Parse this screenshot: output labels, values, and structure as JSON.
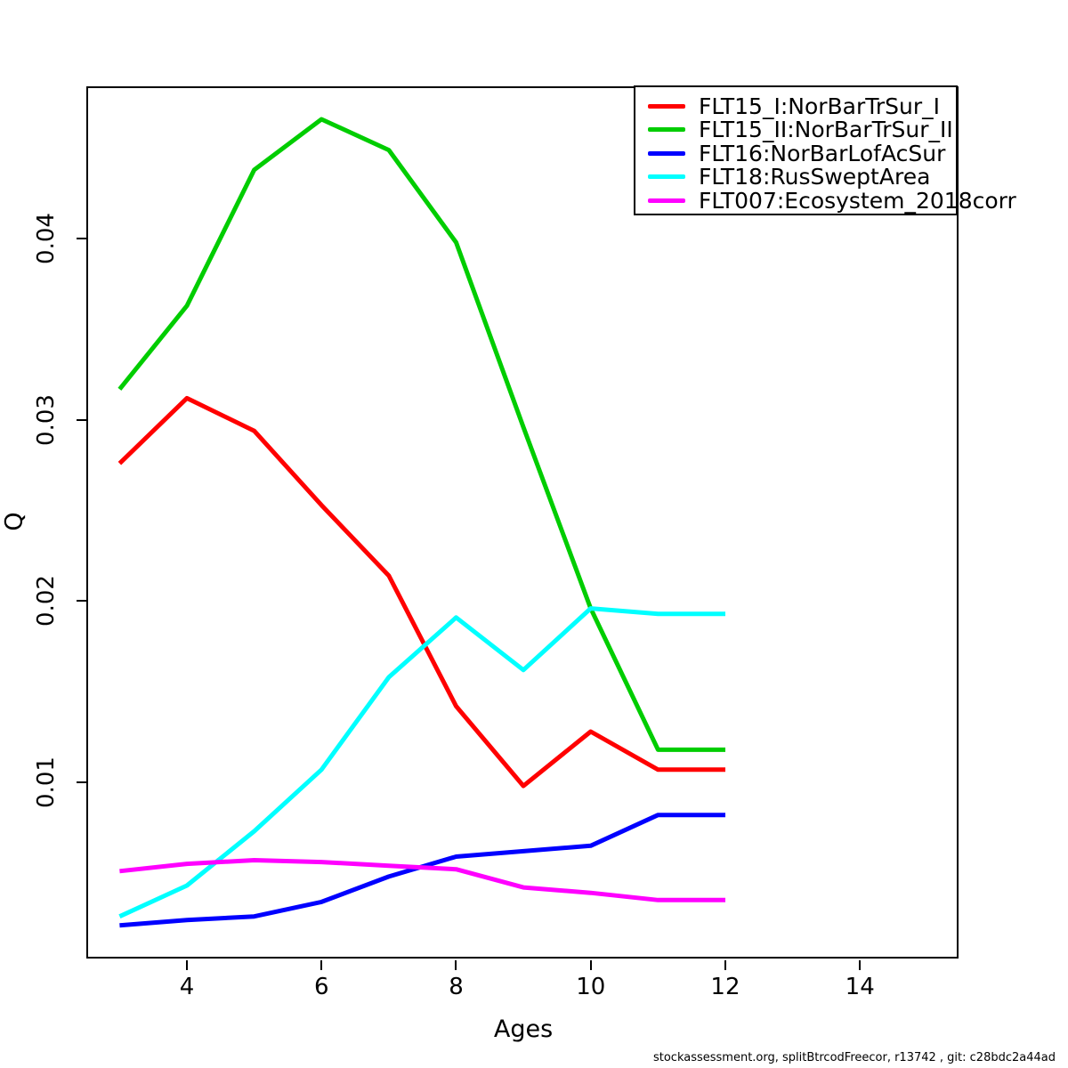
{
  "chart_data": {
    "type": "line",
    "title": "",
    "xlabel": "Ages",
    "ylabel": "Q",
    "x": [
      3,
      4,
      5,
      6,
      7,
      8,
      9,
      10,
      11,
      12
    ],
    "series": [
      {
        "name": "FLT15_I:NorBarTrSur_I",
        "color": "#FF0000",
        "values": [
          0.0276,
          0.0312,
          0.0294,
          0.0253,
          0.0214,
          0.0142,
          0.0098,
          0.0128,
          0.0107,
          0.0107
        ]
      },
      {
        "name": "FLT15_II:NorBarTrSur_II",
        "color": "#00CD00",
        "values": [
          0.0317,
          0.0363,
          0.0438,
          0.0466,
          0.0449,
          0.0398,
          0.0296,
          0.0196,
          0.0118,
          0.0118
        ]
      },
      {
        "name": "FLT16:NorBarLofAcSur",
        "color": "#0000FF",
        "values": [
          0.0021,
          0.0024,
          0.0026,
          0.0034,
          0.0048,
          0.0059,
          0.0062,
          0.0065,
          0.0082,
          0.0082
        ]
      },
      {
        "name": "FLT18:RusSweptArea",
        "color": "#00FFFF",
        "values": [
          0.0026,
          0.0043,
          0.0073,
          0.0107,
          0.0158,
          0.0191,
          0.0162,
          0.0196,
          0.0193,
          0.0193
        ]
      },
      {
        "name": "FLT007:Ecosystem_2018corr",
        "color": "#FF00FF",
        "values": [
          0.0051,
          0.0055,
          0.0057,
          0.0056,
          0.0054,
          0.0052,
          0.0042,
          0.0039,
          0.0035,
          0.0035
        ]
      }
    ],
    "x_ticks": [
      4,
      6,
      8,
      10,
      12,
      14
    ],
    "y_ticks": [
      0.01,
      0.02,
      0.03,
      0.04
    ],
    "y_tick_labels": [
      "0.01",
      "0.02",
      "0.03",
      "0.04"
    ],
    "xlim": [
      2.519,
      15.478
    ],
    "ylim": [
      0.000225,
      0.048366
    ],
    "grid": false,
    "legend_position": "top-right",
    "line_width": 5
  },
  "footer": {
    "text": "stockassessment.org, splitBtrcodFreecor, r13742 , git: c28bdc2a44ad"
  }
}
